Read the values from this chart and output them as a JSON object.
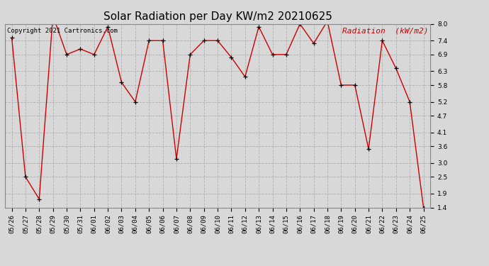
{
  "title": "Solar Radiation per Day KW/m2 20210625",
  "copyright": "Copyright 2021 Cartronics.com",
  "legend_label": "Radiation  (kW/m2)",
  "dates": [
    "05/26",
    "05/27",
    "05/28",
    "05/29",
    "05/30",
    "05/31",
    "06/01",
    "06/02",
    "06/03",
    "06/04",
    "06/05",
    "06/06",
    "06/07",
    "06/08",
    "06/09",
    "06/10",
    "06/11",
    "06/12",
    "06/13",
    "06/14",
    "06/15",
    "06/16",
    "06/17",
    "06/18",
    "06/19",
    "06/20",
    "06/21",
    "06/22",
    "06/23",
    "06/24",
    "06/25"
  ],
  "values": [
    7.5,
    2.5,
    1.7,
    8.3,
    6.9,
    7.1,
    6.9,
    7.9,
    5.9,
    5.2,
    7.4,
    7.4,
    3.15,
    6.9,
    7.4,
    7.4,
    6.8,
    6.1,
    7.9,
    6.9,
    6.9,
    8.0,
    7.3,
    8.1,
    5.8,
    5.8,
    3.5,
    7.4,
    6.4,
    5.2,
    1.4
  ],
  "ylim": [
    1.4,
    8.0
  ],
  "yticks": [
    1.4,
    1.9,
    2.5,
    3.0,
    3.6,
    4.1,
    4.7,
    5.2,
    5.8,
    6.3,
    6.9,
    7.4,
    8.0
  ],
  "line_color": "#cc0000",
  "marker_color": "#000000",
  "grid_color": "#aaaaaa",
  "background_color": "#d8d8d8",
  "title_fontsize": 11,
  "copyright_fontsize": 6.5,
  "legend_fontsize": 8,
  "tick_fontsize": 6.5
}
